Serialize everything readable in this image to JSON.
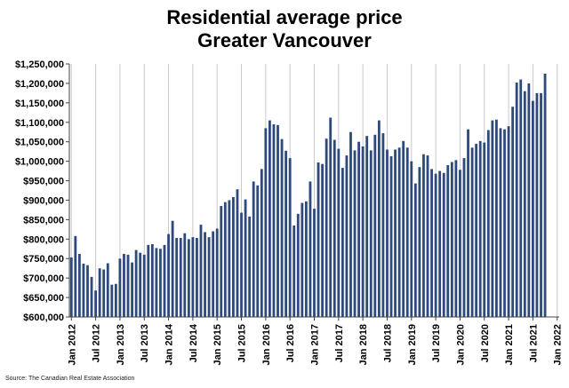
{
  "chart_data": {
    "type": "bar",
    "title": "Residential average price",
    "subtitle": "Greater Vancouver",
    "xlabel": "",
    "ylabel": "",
    "ylim": [
      600000,
      1250000
    ],
    "yticks": [
      600000,
      650000,
      700000,
      750000,
      800000,
      850000,
      900000,
      950000,
      1000000,
      1050000,
      1100000,
      1150000,
      1200000,
      1250000
    ],
    "ytick_labels": [
      "$600,000",
      "$650,000",
      "$700,000",
      "$750,000",
      "$800,000",
      "$850,000",
      "$900,000",
      "$950,000",
      "$1,000,000",
      "$1,050,000",
      "$1,100,000",
      "$1,150,000",
      "$1,200,000",
      "$1,250,000"
    ],
    "xtick_labels": [
      "Jan 2012",
      "Jul 2012",
      "Jan 2013",
      "Jul 2013",
      "Jan 2014",
      "Jul 2014",
      "Jan 2015",
      "Jul 2015",
      "Jan 2016",
      "Jul 2016",
      "Jan 2017",
      "Jul 2017",
      "Jan 2018",
      "Jul 2018",
      "Jan 2019",
      "Jul 2019",
      "Jan 2020",
      "Jul 2020",
      "Jan 2021",
      "Jul 2021",
      "Jan 2022"
    ],
    "start_month": "Jan 2012",
    "grid": "vertical",
    "bar_color": "#2e4a7d",
    "values": [
      753000,
      808000,
      762000,
      737000,
      733000,
      703000,
      668000,
      725000,
      722000,
      738000,
      683000,
      685000,
      750000,
      762000,
      760000,
      740000,
      772000,
      765000,
      760000,
      785000,
      787000,
      777000,
      775000,
      785000,
      813000,
      847000,
      803000,
      803000,
      815000,
      800000,
      805000,
      803000,
      837000,
      818000,
      805000,
      820000,
      827000,
      885000,
      895000,
      900000,
      908000,
      928000,
      868000,
      902000,
      858000,
      948000,
      938000,
      980000,
      1085000,
      1105000,
      1095000,
      1093000,
      1057000,
      1027000,
      1008000,
      835000,
      865000,
      893000,
      897000,
      948000,
      878000,
      997000,
      993000,
      1058000,
      1112000,
      1055000,
      1032000,
      983000,
      1015000,
      1075000,
      1028000,
      1050000,
      1038000,
      1065000,
      1028000,
      1068000,
      1105000,
      1072000,
      1030000,
      1013000,
      1030000,
      1035000,
      1052000,
      1035000,
      1000000,
      943000,
      985000,
      1018000,
      1015000,
      980000,
      968000,
      975000,
      970000,
      990000,
      998000,
      1003000,
      978000,
      1008000,
      1082000,
      1035000,
      1045000,
      1052000,
      1048000,
      1080000,
      1105000,
      1107000,
      1085000,
      1082000,
      1090000,
      1140000,
      1202000,
      1210000,
      1180000,
      1200000,
      1155000,
      1175000,
      1175000,
      1225000
    ]
  },
  "source": "Source: The Canadian Real Estate Association"
}
